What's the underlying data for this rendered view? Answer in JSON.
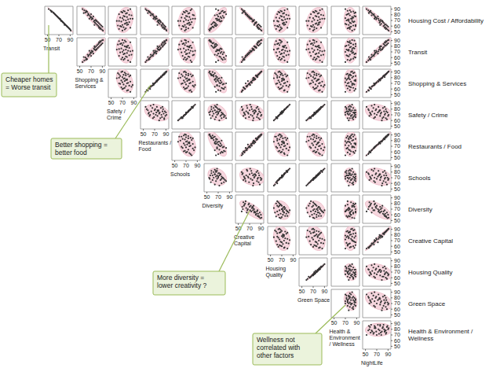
{
  "chart_data": {
    "type": "scatter_matrix",
    "variables": [
      "Housing Cost / Affordability",
      "Transit",
      "Shopping & Services",
      "Safety / Crime",
      "Restaurants / Food",
      "Schools",
      "Diversity",
      "Creative Capital",
      "Housing Quality",
      "Green Space",
      "Health & Environment / Wellness",
      "NightLife"
    ],
    "observations": [
      [
        88,
        55,
        58,
        80,
        56,
        78,
        70,
        58,
        75,
        82,
        78,
        55
      ],
      [
        86,
        58,
        62,
        74,
        60,
        72,
        76,
        60,
        70,
        76,
        84,
        58
      ],
      [
        90,
        52,
        55,
        84,
        54,
        80,
        66,
        56,
        80,
        86,
        70,
        52
      ],
      [
        84,
        60,
        60,
        70,
        62,
        68,
        80,
        62,
        66,
        72,
        88,
        60
      ],
      [
        82,
        62,
        65,
        76,
        64,
        74,
        72,
        64,
        72,
        78,
        76,
        62
      ],
      [
        85,
        57,
        63,
        68,
        61,
        66,
        82,
        59,
        64,
        70,
        80,
        57
      ],
      [
        80,
        64,
        66,
        82,
        66,
        82,
        68,
        66,
        78,
        84,
        72,
        64
      ],
      [
        78,
        66,
        68,
        72,
        68,
        70,
        78,
        68,
        68,
        74,
        86,
        66
      ],
      [
        81,
        63,
        70,
        64,
        67,
        64,
        84,
        63,
        62,
        66,
        74,
        65
      ],
      [
        76,
        68,
        70,
        78,
        70,
        76,
        74,
        70,
        74,
        80,
        82,
        68
      ],
      [
        79,
        65,
        64,
        86,
        63,
        84,
        64,
        65,
        82,
        88,
        78,
        61
      ],
      [
        74,
        70,
        72,
        70,
        72,
        68,
        76,
        72,
        66,
        70,
        70,
        70
      ],
      [
        77,
        67,
        74,
        74,
        73,
        72,
        70,
        67,
        70,
        76,
        88,
        72
      ],
      [
        72,
        72,
        71,
        80,
        71,
        78,
        72,
        74,
        76,
        82,
        76,
        69
      ],
      [
        75,
        69,
        69,
        66,
        69,
        62,
        80,
        69,
        60,
        64,
        84,
        67
      ],
      [
        70,
        74,
        76,
        76,
        76,
        74,
        68,
        76,
        72,
        78,
        72,
        74
      ],
      [
        73,
        71,
        73,
        84,
        74,
        82,
        66,
        73,
        80,
        86,
        80,
        73
      ],
      [
        68,
        76,
        75,
        68,
        75,
        66,
        74,
        75,
        64,
        68,
        86,
        76
      ],
      [
        71,
        73,
        78,
        72,
        78,
        70,
        70,
        78,
        70,
        72,
        74,
        77
      ],
      [
        66,
        78,
        77,
        78,
        77,
        76,
        64,
        80,
        74,
        80,
        78,
        75
      ],
      [
        69,
        75,
        80,
        64,
        80,
        60,
        76,
        77,
        62,
        62,
        82,
        80
      ],
      [
        64,
        80,
        79,
        74,
        79,
        72,
        66,
        79,
        72,
        74,
        70,
        78
      ],
      [
        67,
        77,
        82,
        82,
        81,
        80,
        62,
        82,
        78,
        82,
        84,
        81
      ],
      [
        62,
        82,
        81,
        70,
        82,
        68,
        68,
        84,
        66,
        70,
        76,
        84
      ],
      [
        65,
        79,
        84,
        76,
        84,
        74,
        60,
        81,
        72,
        76,
        80,
        83
      ],
      [
        60,
        84,
        83,
        66,
        83,
        64,
        66,
        83,
        62,
        66,
        88,
        82
      ],
      [
        63,
        81,
        86,
        80,
        85,
        78,
        58,
        86,
        76,
        80,
        72,
        86
      ],
      [
        58,
        86,
        85,
        72,
        86,
        70,
        62,
        85,
        68,
        72,
        78,
        85
      ],
      [
        61,
        83,
        88,
        62,
        87,
        58,
        64,
        88,
        58,
        60,
        84,
        88
      ],
      [
        56,
        88,
        87,
        76,
        88,
        74,
        56,
        87,
        70,
        76,
        74,
        87
      ],
      [
        59,
        85,
        90,
        68,
        89,
        66,
        60,
        90,
        64,
        68,
        80,
        90
      ],
      [
        54,
        90,
        89,
        74,
        90,
        70,
        54,
        89,
        68,
        72,
        86,
        89
      ],
      [
        57,
        87,
        84,
        84,
        84,
        82,
        58,
        84,
        80,
        84,
        76,
        84
      ],
      [
        52,
        91,
        91,
        70,
        91,
        68,
        55,
        91,
        66,
        70,
        82,
        91
      ],
      [
        83,
        61,
        57,
        78,
        58,
        76,
        74,
        57,
        74,
        80,
        86,
        56
      ],
      [
        87,
        56,
        61,
        72,
        59,
        70,
        78,
        61,
        68,
        74,
        74,
        59
      ],
      [
        55,
        89,
        86,
        64,
        87,
        62,
        57,
        86,
        60,
        64,
        78,
        86
      ],
      [
        73,
        72,
        67,
        88,
        68,
        86,
        68,
        71,
        84,
        90,
        82,
        66
      ],
      [
        69,
        74,
        79,
        60,
        78,
        56,
        72,
        76,
        56,
        58,
        76,
        79
      ],
      [
        62,
        80,
        76,
        78,
        75,
        76,
        64,
        78,
        74,
        78,
        88,
        76
      ]
    ],
    "xlim": [
      45,
      95
    ],
    "xticks": [
      50,
      70,
      90
    ],
    "ylim": [
      45,
      95
    ],
    "yticks": [
      50,
      60,
      70,
      80,
      90
    ],
    "color": "#333333",
    "annotations": [
      {
        "text": [
          "Cheaper homes",
          "= Worse transit"
        ]
      },
      {
        "text": [
          "Better shopping =",
          "better food"
        ]
      },
      {
        "text": [
          "More diversity =",
          "lower creativity ?"
        ]
      },
      {
        "text": [
          "Wellness not",
          "correlated with",
          "other factors"
        ]
      }
    ]
  }
}
